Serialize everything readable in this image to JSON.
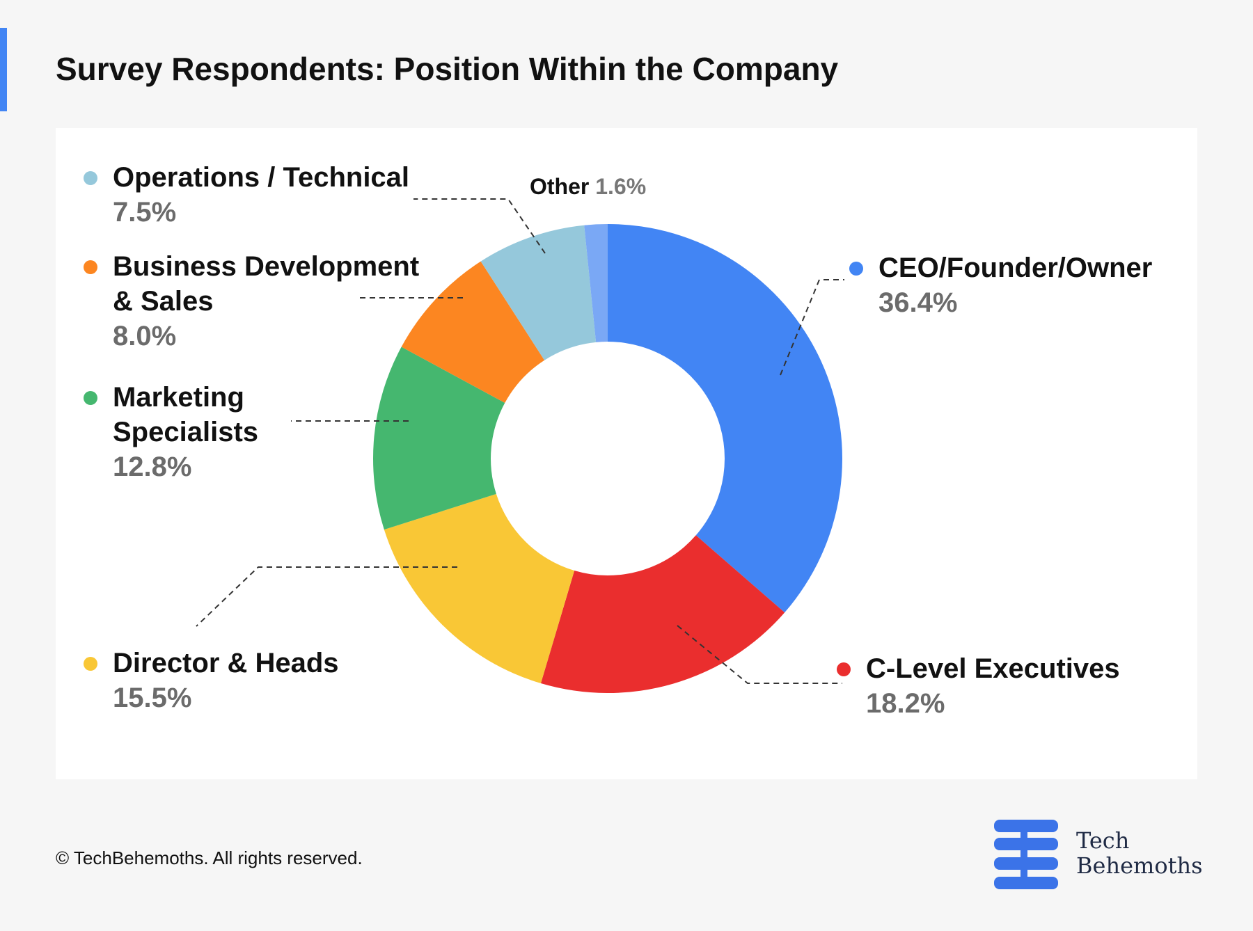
{
  "title": "Survey Respondents: Position Within the Company",
  "copyright": "© TechBehemoths. All rights reserved.",
  "logo": {
    "line1": "Tech",
    "line2": "Behemoths",
    "color": "#3b73e8"
  },
  "colors": {
    "accent": "#4285f4",
    "name_text": "#111111",
    "pct_text": "#6b6b6b"
  },
  "chart_data": {
    "type": "pie",
    "subtype": "donut",
    "unit": "%",
    "order": "clockwise from top",
    "slices": [
      {
        "name": "CEO/Founder/Owner",
        "display_name": "CEO/Founder/Owner",
        "value": 36.4,
        "label": "36.4%",
        "color": "#4285f4"
      },
      {
        "name": "C-Level Executives",
        "display_name": "C-Level Executives",
        "value": 18.2,
        "label": "18.2%",
        "color": "#ea2e2e"
      },
      {
        "name": "Director & Heads",
        "display_name": "Director & Heads",
        "value": 15.5,
        "label": "15.5%",
        "color": "#f9c736"
      },
      {
        "name": "Marketing Specialists",
        "display_name": "Marketing\nSpecialists",
        "value": 12.8,
        "label": "12.8%",
        "color": "#45b76f"
      },
      {
        "name": "Business Development & Sales",
        "display_name": "Business Development\n& Sales",
        "value": 8.0,
        "label": "8.0%",
        "color": "#fc8621"
      },
      {
        "name": "Operations / Technical",
        "display_name": "Operations / Technical",
        "value": 7.5,
        "label": "7.5%",
        "color": "#95c8db"
      },
      {
        "name": "Other",
        "display_name": "Other",
        "value": 1.6,
        "label": "1.6%",
        "color": "#7aa8f5"
      }
    ]
  }
}
